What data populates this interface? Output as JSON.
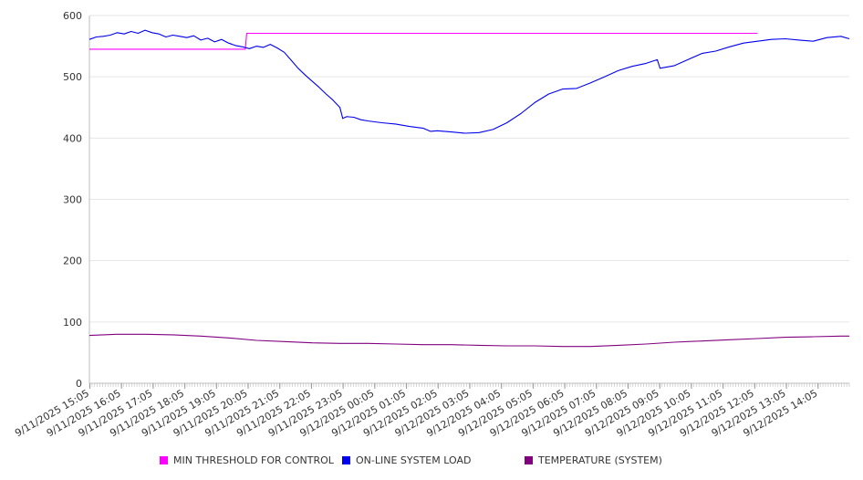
{
  "chart_data": {
    "type": "line",
    "title": "",
    "xlabel": "",
    "ylabel": "",
    "ylim": [
      0,
      600
    ],
    "yticks": [
      0,
      100,
      200,
      300,
      400,
      500,
      600
    ],
    "x_tick_labels": [
      "9/11/2025 15:05",
      "9/11/2025 16:05",
      "9/11/2025 17:05",
      "9/11/2025 18:05",
      "9/11/2025 19:05",
      "9/11/2025 20:05",
      "9/11/2025 21:05",
      "9/11/2025 22:05",
      "9/11/2025 23:05",
      "9/12/2025 00:05",
      "9/12/2025 01:05",
      "9/12/2025 02:05",
      "9/12/2025 03:05",
      "9/12/2025 04:05",
      "9/12/2025 05:05",
      "9/12/2025 06:05",
      "9/12/2025 07:05",
      "9/12/2025 08:05",
      "9/12/2025 09:05",
      "9/12/2025 10:05",
      "9/12/2025 11:05",
      "9/12/2025 12:05",
      "9/12/2025 13:05",
      "9/12/2025 14:05"
    ],
    "grid": true,
    "legend_position": "bottom",
    "series": [
      {
        "name": "MIN THRESHOLD FOR CONTROL",
        "color": "#ff00ff",
        "points": [
          [
            0,
            545
          ],
          [
            5.6,
            545
          ],
          [
            5.65,
            571
          ],
          [
            24,
            571
          ]
        ]
      },
      {
        "name": "ON-LINE SYSTEM LOAD",
        "color": "#0000ee",
        "points": [
          [
            0,
            561
          ],
          [
            0.25,
            565
          ],
          [
            0.5,
            566
          ],
          [
            0.75,
            568
          ],
          [
            1,
            572
          ],
          [
            1.25,
            570
          ],
          [
            1.5,
            574
          ],
          [
            1.75,
            571
          ],
          [
            2,
            576
          ],
          [
            2.25,
            572
          ],
          [
            2.5,
            570
          ],
          [
            2.75,
            565
          ],
          [
            3,
            568
          ],
          [
            3.25,
            566
          ],
          [
            3.5,
            564
          ],
          [
            3.75,
            567
          ],
          [
            4,
            560
          ],
          [
            4.25,
            563
          ],
          [
            4.5,
            557
          ],
          [
            4.75,
            561
          ],
          [
            5,
            555
          ],
          [
            5.25,
            551
          ],
          [
            5.5,
            549
          ],
          [
            5.75,
            546
          ],
          [
            6,
            550
          ],
          [
            6.25,
            548
          ],
          [
            6.5,
            553
          ],
          [
            6.75,
            547
          ],
          [
            7,
            540
          ],
          [
            7.25,
            527
          ],
          [
            7.5,
            514
          ],
          [
            7.75,
            503
          ],
          [
            8,
            493
          ],
          [
            8.25,
            483
          ],
          [
            8.5,
            472
          ],
          [
            8.75,
            462
          ],
          [
            9,
            450
          ],
          [
            9.1,
            432
          ],
          [
            9.25,
            435
          ],
          [
            9.5,
            434
          ],
          [
            9.75,
            430
          ],
          [
            10,
            428
          ],
          [
            10.5,
            425
          ],
          [
            11,
            423
          ],
          [
            11.5,
            419
          ],
          [
            12,
            416
          ],
          [
            12.25,
            411
          ],
          [
            12.5,
            412
          ],
          [
            13,
            410
          ],
          [
            13.5,
            408
          ],
          [
            14,
            409
          ],
          [
            14.5,
            414
          ],
          [
            15,
            425
          ],
          [
            15.5,
            440
          ],
          [
            16,
            458
          ],
          [
            16.5,
            472
          ],
          [
            17,
            480
          ],
          [
            17.5,
            481
          ],
          [
            18,
            490
          ],
          [
            18.5,
            500
          ],
          [
            19,
            510
          ],
          [
            19.5,
            517
          ],
          [
            20,
            522
          ],
          [
            20.4,
            528
          ],
          [
            20.5,
            514
          ],
          [
            20.75,
            516
          ],
          [
            21,
            518
          ],
          [
            21.5,
            528
          ],
          [
            22,
            538
          ],
          [
            22.5,
            542
          ],
          [
            23,
            549
          ],
          [
            23.5,
            555
          ],
          [
            24,
            558
          ],
          [
            24.5,
            561
          ],
          [
            25,
            562
          ],
          [
            25.5,
            560
          ],
          [
            26,
            558
          ],
          [
            26.5,
            564
          ],
          [
            27,
            566
          ],
          [
            27.3,
            562
          ]
        ]
      },
      {
        "name": "TEMPERATURE (SYSTEM)",
        "color": "#800080",
        "points": [
          [
            0,
            78
          ],
          [
            1,
            80
          ],
          [
            2,
            80
          ],
          [
            3,
            79
          ],
          [
            4,
            77
          ],
          [
            5,
            74
          ],
          [
            6,
            70
          ],
          [
            7,
            68
          ],
          [
            8,
            66
          ],
          [
            9,
            65
          ],
          [
            10,
            65
          ],
          [
            11,
            64
          ],
          [
            12,
            63
          ],
          [
            13,
            63
          ],
          [
            14,
            62
          ],
          [
            15,
            61
          ],
          [
            16,
            61
          ],
          [
            17,
            60
          ],
          [
            18,
            60
          ],
          [
            19,
            62
          ],
          [
            20,
            64
          ],
          [
            21,
            67
          ],
          [
            22,
            69
          ],
          [
            23,
            71
          ],
          [
            24,
            73
          ],
          [
            25,
            75
          ],
          [
            26,
            76
          ],
          [
            27,
            77
          ],
          [
            27.3,
            77
          ]
        ]
      }
    ]
  }
}
